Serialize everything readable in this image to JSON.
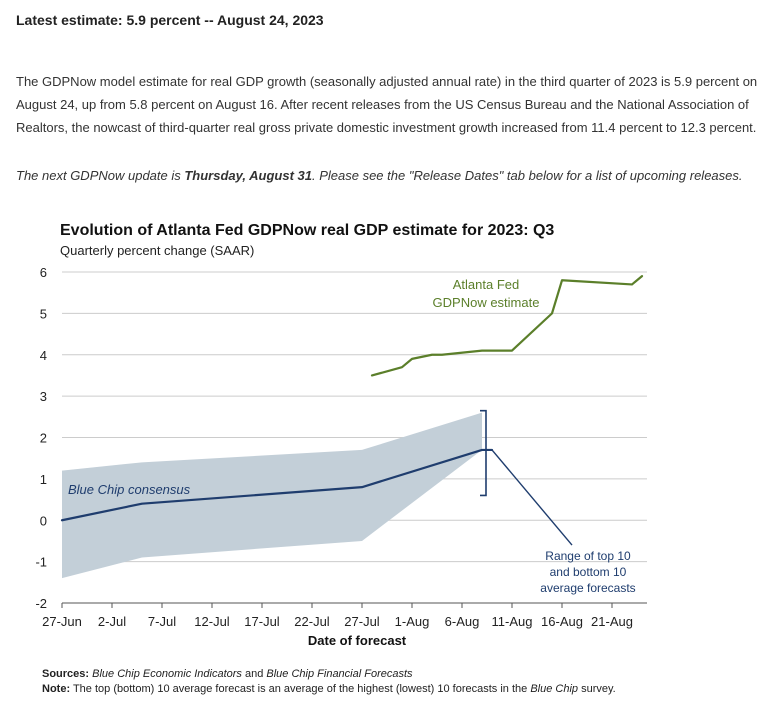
{
  "header": {
    "latest": "Latest estimate: 5.9 percent -- August 24, 2023",
    "paragraph": "The GDPNow model estimate for real GDP growth (seasonally adjusted annual rate) in the third quarter of 2023 is 5.9 percent on August 24, up from 5.8 percent on August 16. After recent releases from the US Census Bureau and the National Association of Realtors, the nowcast of third-quarter real gross private domestic investment growth increased from 11.4 percent to 12.3 percent.",
    "next_pre": "The next GDPNow update is ",
    "next_date": "Thursday, August 31",
    "next_post": ". Please see the \"Release Dates\" tab below for a list of upcoming releases."
  },
  "footer": {
    "sources_label": "Sources:",
    "sources_1": "Blue Chip Economic Indicators",
    "sources_and": " and ",
    "sources_2": "Blue Chip Financial Forecasts",
    "note_label": "Note:",
    "note_text": " The top (bottom) 10 average forecast is an average of the highest (lowest) 10 forecasts in the ",
    "note_italic": "Blue Chip",
    "note_end": " survey."
  },
  "colors": {
    "gdpnow": "#5b7f2a",
    "bluechip": "#1f3d6e",
    "band": "#c3cfd8",
    "grid": "#cccccc"
  },
  "chart_data": {
    "type": "line",
    "title": "Evolution of Atlanta Fed GDPNow real GDP estimate for 2023: Q3",
    "subtitle": "Quarterly percent change (SAAR)",
    "xlabel": "Date of forecast",
    "ylabel": "",
    "ylim": [
      -2,
      6
    ],
    "yticks": [
      "-2",
      "-1",
      "0",
      "1",
      "2",
      "3",
      "4",
      "5",
      "6"
    ],
    "xlim": [
      "2023-06-27",
      "2023-08-25"
    ],
    "xticks": [
      "27-Jun",
      "2-Jul",
      "7-Jul",
      "12-Jul",
      "17-Jul",
      "22-Jul",
      "27-Jul",
      "1-Aug",
      "6-Aug",
      "11-Aug",
      "16-Aug",
      "21-Aug"
    ],
    "xtick_dates": [
      "2023-06-27",
      "2023-07-02",
      "2023-07-07",
      "2023-07-12",
      "2023-07-17",
      "2023-07-22",
      "2023-07-27",
      "2023-08-01",
      "2023-08-06",
      "2023-08-11",
      "2023-08-16",
      "2023-08-21"
    ],
    "grid": "horizontal",
    "series": [
      {
        "label": "Atlanta Fed GDPNow estimate",
        "color": "#5b7f2a",
        "points": [
          {
            "x": "2023-07-28",
            "y": 3.5
          },
          {
            "x": "2023-07-31",
            "y": 3.7
          },
          {
            "x": "2023-08-01",
            "y": 3.9
          },
          {
            "x": "2023-08-03",
            "y": 4.0
          },
          {
            "x": "2023-08-04",
            "y": 4.0
          },
          {
            "x": "2023-08-08",
            "y": 4.1
          },
          {
            "x": "2023-08-10",
            "y": 4.1
          },
          {
            "x": "2023-08-11",
            "y": 4.1
          },
          {
            "x": "2023-08-15",
            "y": 5.0
          },
          {
            "x": "2023-08-16",
            "y": 5.8
          },
          {
            "x": "2023-08-23",
            "y": 5.7
          },
          {
            "x": "2023-08-24",
            "y": 5.9
          }
        ]
      },
      {
        "label": "Blue Chip consensus",
        "color": "#1f3d6e",
        "points": [
          {
            "x": "2023-06-27",
            "y": 0.0
          },
          {
            "x": "2023-07-05",
            "y": 0.4
          },
          {
            "x": "2023-07-27",
            "y": 0.8
          },
          {
            "x": "2023-08-08",
            "y": 1.7
          },
          {
            "x": "2023-08-09",
            "y": 1.7
          }
        ]
      }
    ],
    "range_band": {
      "label": "Range of top 10 and bottom 10 average forecasts",
      "label_lines": [
        "Range of top 10",
        "and bottom 10",
        "average forecasts"
      ],
      "upper": [
        {
          "x": "2023-06-27",
          "y": 1.2
        },
        {
          "x": "2023-07-05",
          "y": 1.4
        },
        {
          "x": "2023-07-27",
          "y": 1.7
        },
        {
          "x": "2023-08-08",
          "y": 2.6
        }
      ],
      "lower": [
        {
          "x": "2023-06-27",
          "y": -1.4
        },
        {
          "x": "2023-07-05",
          "y": -0.9
        },
        {
          "x": "2023-07-27",
          "y": -0.5
        },
        {
          "x": "2023-08-08",
          "y": 1.7
        }
      ]
    },
    "annotations": {
      "gdpnow_label": [
        "Atlanta Fed",
        "GDPNow estimate"
      ],
      "bluechip_label": "Blue Chip consensus",
      "range_pointer": [
        {
          "x": "2023-08-09",
          "y": 1.7
        },
        {
          "x": "2023-08-17",
          "y": -0.6
        }
      ]
    }
  }
}
